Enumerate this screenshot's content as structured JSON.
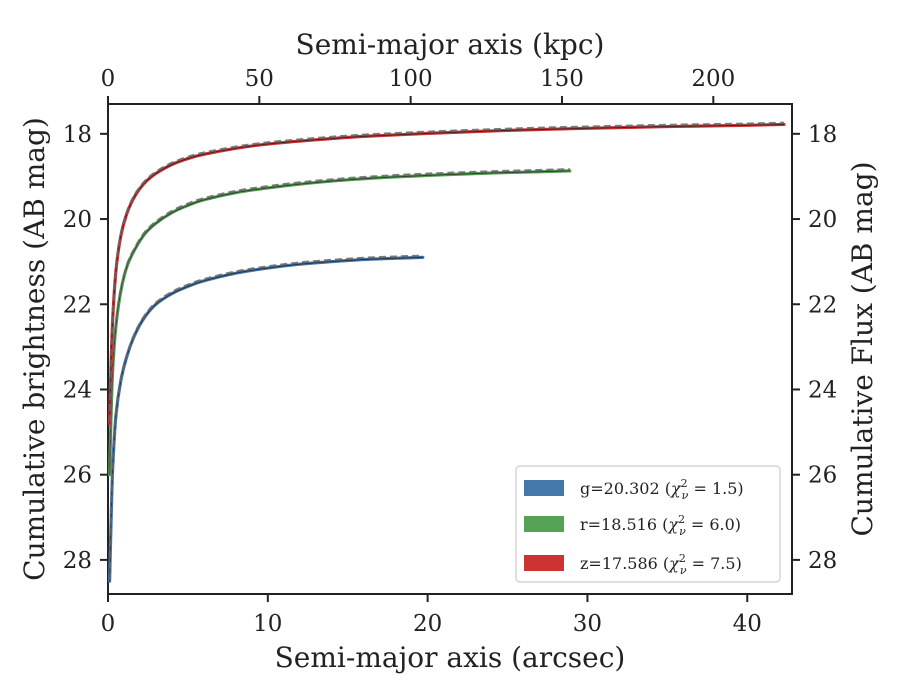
{
  "chart_data": {
    "type": "line",
    "xlabel_bottom": "Semi-major axis (arcsec)",
    "xlabel_top": "Semi-major axis (kpc)",
    "ylabel_left": "Cumulative brightness (AB mag)",
    "ylabel_right": "Cumulative Flux (AB mag)",
    "xlim": [
      0,
      42.8
    ],
    "ylim": [
      28.8,
      17.3
    ],
    "y_inverted": true,
    "xlim_top": [
      0,
      226
    ],
    "xticks_bottom": [
      0,
      10,
      20,
      30,
      40
    ],
    "xticks_top": [
      0,
      50,
      100,
      150,
      200
    ],
    "yticks": [
      18,
      20,
      22,
      24,
      26,
      28
    ],
    "grid": false,
    "legend_position": "lower-right",
    "series": [
      {
        "name": "g=20.302 (χ²ν = 1.5)",
        "band": "g",
        "total_mag": 20.302,
        "chi2": 1.5,
        "color": "#4477aa",
        "r_max": 19.7,
        "x": [
          0.1,
          0.2,
          0.3,
          0.5,
          0.8,
          1.2,
          1.7,
          2.3,
          3.0,
          4.0,
          5.0,
          6.0,
          8.0,
          10.0,
          12.0,
          14.0,
          16.0,
          18.0,
          19.7
        ],
        "y": [
          28.5,
          27.0,
          25.8,
          24.6,
          23.8,
          23.2,
          22.7,
          22.3,
          22.0,
          21.75,
          21.58,
          21.45,
          21.27,
          21.15,
          21.06,
          21.0,
          20.95,
          20.92,
          20.9
        ]
      },
      {
        "name": "r=18.516 (χ²ν = 6.0)",
        "band": "r",
        "total_mag": 18.516,
        "chi2": 6.0,
        "color": "#55a255",
        "r_max": 28.9,
        "x": [
          0.1,
          0.2,
          0.3,
          0.5,
          0.8,
          1.2,
          1.7,
          2.3,
          3.0,
          4.0,
          5.0,
          6.0,
          8.0,
          10.0,
          12.0,
          15.0,
          18.0,
          21.0,
          24.0,
          27.0,
          28.9
        ],
        "y": [
          26.0,
          24.5,
          23.5,
          22.5,
          21.7,
          21.1,
          20.7,
          20.35,
          20.1,
          19.85,
          19.68,
          19.55,
          19.38,
          19.27,
          19.18,
          19.08,
          19.01,
          18.96,
          18.92,
          18.89,
          18.87
        ]
      },
      {
        "name": "z=17.586 (χ²ν = 7.5)",
        "band": "z",
        "total_mag": 17.586,
        "chi2": 7.5,
        "color": "#cc3333",
        "r_max": 42.3,
        "x": [
          0.1,
          0.2,
          0.3,
          0.5,
          0.8,
          1.2,
          1.7,
          2.3,
          3.0,
          4.0,
          5.0,
          6.0,
          8.0,
          10.0,
          13.0,
          16.0,
          20.0,
          25.0,
          30.0,
          35.0,
          40.0,
          42.3
        ],
        "y": [
          24.8,
          23.3,
          22.3,
          21.2,
          20.4,
          19.85,
          19.45,
          19.15,
          18.93,
          18.72,
          18.58,
          18.48,
          18.34,
          18.24,
          18.14,
          18.06,
          17.99,
          17.92,
          17.87,
          17.83,
          17.8,
          17.78
        ]
      }
    ]
  },
  "legend": {
    "g": {
      "prefix": "g=20.302 (",
      "chi": "χ",
      "sup": "2",
      "sub": "ν",
      "suffix": " = 1.5)"
    },
    "r": {
      "prefix": "r=18.516 (",
      "chi": "χ",
      "sup": "2",
      "sub": "ν",
      "suffix": " = 6.0)"
    },
    "z": {
      "prefix": "z=17.586 (",
      "chi": "χ",
      "sup": "2",
      "sub": "ν",
      "suffix": " = 7.5)"
    }
  },
  "colors": {
    "g": "#4477aa",
    "r": "#55a255",
    "z": "#cc3333",
    "model_dash": "#666666",
    "axes": "#222222"
  }
}
